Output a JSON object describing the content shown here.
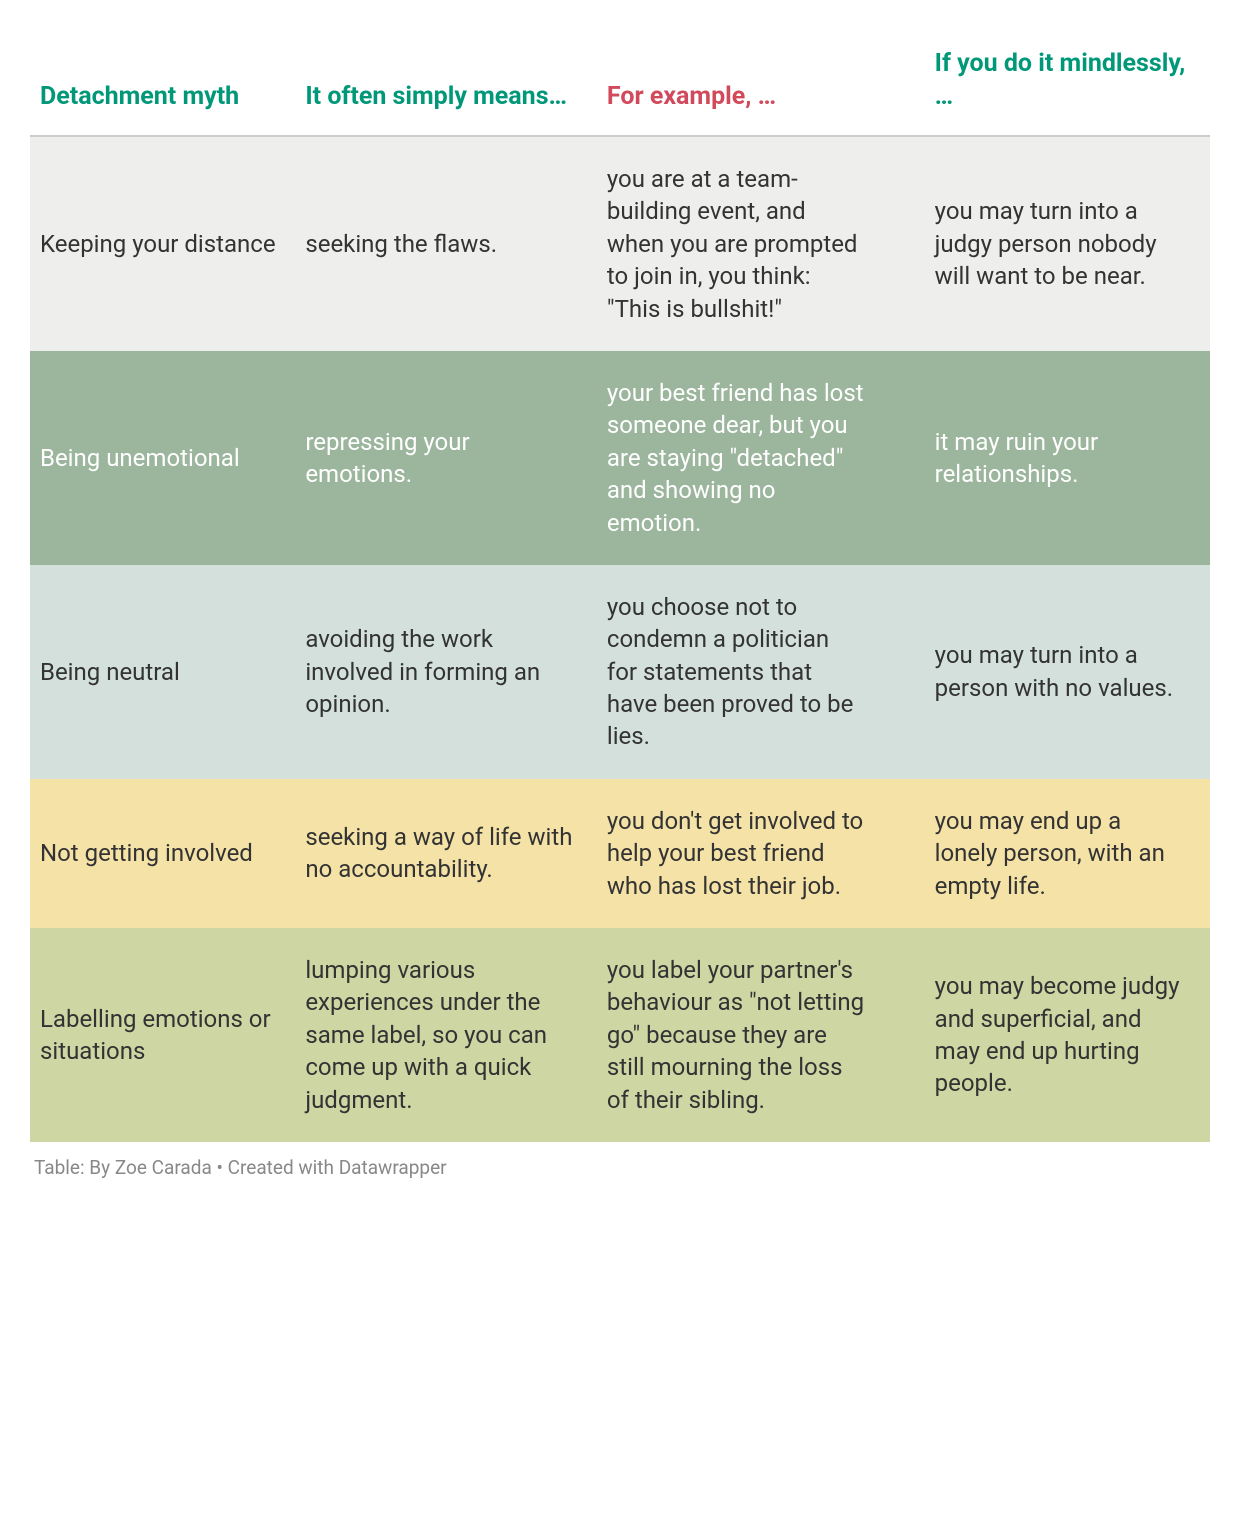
{
  "table": {
    "type": "table",
    "columns": [
      {
        "label": "Detachment myth",
        "color": "#009879"
      },
      {
        "label": "It often simply means…",
        "color": "#009879"
      },
      {
        "label": "For example, …",
        "color": "#d1495b"
      },
      {
        "label": "If you do it mindlessly, …",
        "color": "#009879"
      }
    ],
    "rows": [
      {
        "bg": "#eeeeec",
        "fg": "#333333",
        "cells": [
          "Keeping your distance",
          "seeking the flaws.",
          "you are at a team-building event, and when you are prompted to join in, you think: \"This is bullshit!\"",
          "you may turn into a judgy person nobody will want to be near."
        ]
      },
      {
        "bg": "#9cb59d",
        "fg": "#ffffff",
        "cells": [
          "Being unemotional",
          "repressing your emotions.",
          "your best friend has lost someone dear, but you are staying \"detached\" and showing no emotion.",
          "it may ruin your relationships."
        ]
      },
      {
        "bg": "#d3e0db",
        "fg": "#333333",
        "cells": [
          "Being neutral",
          "avoiding the work involved in forming an opinion.",
          "you choose not to condemn a politician for statements that have been proved to be lies.",
          "you may turn into a person with no values."
        ]
      },
      {
        "bg": "#f5e2a7",
        "fg": "#333333",
        "cells": [
          "Not getting involved",
          "seeking a way of life with no accountability.",
          "you don't get involved to help your best friend who has lost their job.",
          "you may end up a lonely person, with an empty life."
        ]
      },
      {
        "bg": "#ced6a3",
        "fg": "#333333",
        "cells": [
          "Labelling emotions or situations",
          "lumping various experiences under the same label, so you can come up with a quick judgment.",
          "you label your partner's behaviour as \"not letting go\" because they are still mourning the loss of their sibling.",
          "you may become judgy and superficial, and may end up hurting people."
        ]
      }
    ]
  },
  "attribution": "Table: By Zoe Carada • Created with Datawrapper"
}
